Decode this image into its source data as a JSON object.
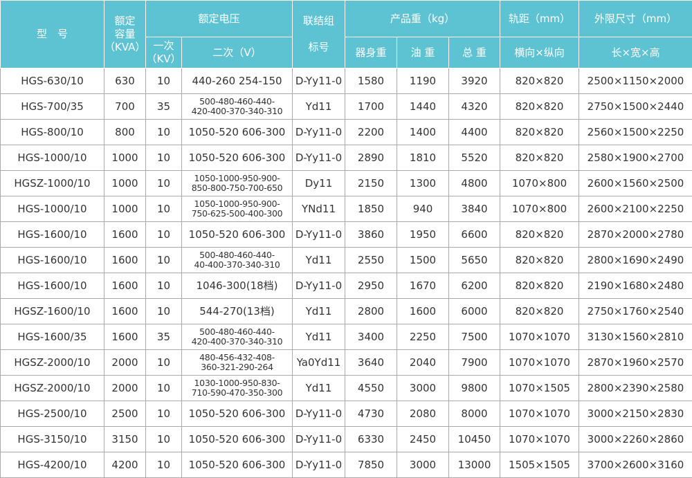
{
  "header": {
    "model": "型　号",
    "capacity": "额定\n容量\n（KVA）",
    "rated_voltage": "额定电压",
    "connection": "联结组\n\n标号",
    "weight": "产品重（kg）",
    "gauge": "轨距（mm）",
    "dimensions": "外限尺寸（mm）",
    "primary": "一次\n（KV）",
    "secondary": "二次（V）",
    "body_weight": "器身重",
    "oil_weight": "油 重",
    "total_weight": "总 重",
    "gauge_dirs": "横向×纵向",
    "dims_dirs": "长×宽×高"
  },
  "table": {
    "rows": [
      [
        "HGS-630/10",
        "630",
        "10",
        "440-260 254-150",
        "D-Yy11-0",
        "1580",
        "1190",
        "3920",
        "820×820",
        "2500×1150×2000"
      ],
      [
        "HGS-700/35",
        "700",
        "35",
        "500-480-460-440-\n420-400-370-340-310",
        "Yd11",
        "1700",
        "1440",
        "4320",
        "820×820",
        "2750×1500×2440"
      ],
      [
        "HGS-800/10",
        "800",
        "10",
        "1050-520 606-300",
        "D-Yy11-0",
        "2200",
        "1400",
        "4400",
        "820×820",
        "2560×1500×2250"
      ],
      [
        "HGS-1000/10",
        "1000",
        "10",
        "1050-520 606-300",
        "D-Yy11-0",
        "2890",
        "1810",
        "5520",
        "820×820",
        "2580×1900×2700"
      ],
      [
        "HGSZ-1000/10",
        "1000",
        "10",
        "1050-1000-950-900-\n850-800-750-700-650",
        "Dy11",
        "2150",
        "1300",
        "4800",
        "1070×800",
        "2600×1560×2500"
      ],
      [
        "HGS-1000/10",
        "1000",
        "10",
        "1050-1000-950-900-\n750-625-500-400-300",
        "YNd11",
        "1850",
        "940",
        "3840",
        "1070×800",
        "2600×2100×2250"
      ],
      [
        "HGS-1600/10",
        "1600",
        "10",
        "1050-520 606-300",
        "D-Yy11-0",
        "3860",
        "1950",
        "6600",
        "820×820",
        "2870×2000×2780"
      ],
      [
        "HGS-1600/10",
        "1600",
        "10",
        "500-480-460-440-\n40-400-370-340-310",
        "Yd11",
        "2550",
        "1500",
        "5650",
        "820×820",
        "2800×1690×2490"
      ],
      [
        "HGS-1600/10",
        "1600",
        "10",
        "1046-300(18档)",
        "D-Yy11-0",
        "2950",
        "1670",
        "6200",
        "820×820",
        "2190×1680×2480"
      ],
      [
        "HGSZ-1600/10",
        "1600",
        "10",
        "544-270(13档)",
        "Yd11",
        "2800",
        "1600",
        "6000",
        "820×820",
        "2750×1760×2540"
      ],
      [
        "HGS-1600/35",
        "1600",
        "35",
        "500-480-460-440-\n420-400-370-340-310",
        "Yd11",
        "3400",
        "2250",
        "7500",
        "1070×1070",
        "3130×1560×2810"
      ],
      [
        "HGSZ-2000/10",
        "2000",
        "10",
        "480-456-432-408-\n360-321-290-264",
        "Ya0Yd11",
        "3640",
        "2040",
        "7900",
        "1070×1070",
        "2870×1960×2570"
      ],
      [
        "HGSZ-2000/10",
        "2000",
        "10",
        "1030-1000-950-830-\n710-590-470-350-300",
        "Yd11",
        "4550",
        "3000",
        "9800",
        "1070×1505",
        "2800×2390×2580"
      ],
      [
        "HGS-2500/10",
        "2500",
        "10",
        "1050-520 606-300",
        "D-Yy11-0",
        "4730",
        "2080",
        "8000",
        "1070×1070",
        "3000×2150×2830"
      ],
      [
        "HGS-3150/10",
        "3150",
        "10",
        "1050-520 606-300",
        "D-Yy11-0",
        "6330",
        "2450",
        "10450",
        "1070×1070",
        "3000×2260×2860"
      ],
      [
        "HGS-4200/10",
        "4200",
        "10",
        "1050-520 606-300",
        "D-Yy11-0",
        "7850",
        "3000",
        "13000",
        "1505×1505",
        "3700×2600×3160"
      ]
    ]
  }
}
